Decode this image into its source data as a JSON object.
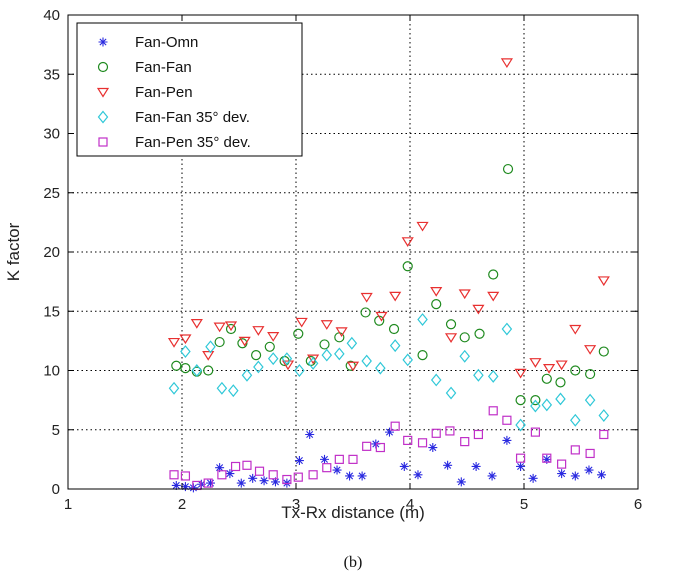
{
  "caption": "(b)",
  "colors": {
    "fan_omn": "#2a2ae0",
    "fan_fan": "#1f8a1f",
    "fan_pen": "#e83030",
    "fan_fan_35": "#30c8d8",
    "fan_pen_35": "#c030c8"
  },
  "chart_data": {
    "type": "scatter",
    "title": "",
    "xlabel": "Tx-Rx distance (m)",
    "ylabel": "K factor",
    "xlim": [
      1,
      6
    ],
    "ylim": [
      0,
      40
    ],
    "xticks": [
      "1",
      "2",
      "3",
      "4",
      "5",
      "6"
    ],
    "yticks": [
      "0",
      "5",
      "10",
      "15",
      "20",
      "25",
      "30",
      "35",
      "40"
    ],
    "grid": true,
    "legend_position": "top-left",
    "series": [
      {
        "name": "Fan-Omn",
        "marker": "asterisk",
        "color": "#2a2ae0",
        "points": [
          [
            1.95,
            0.3
          ],
          [
            2.03,
            0.2
          ],
          [
            2.1,
            0.1
          ],
          [
            2.17,
            0.4
          ],
          [
            2.25,
            0.5
          ],
          [
            2.33,
            1.8
          ],
          [
            2.42,
            1.3
          ],
          [
            2.52,
            0.5
          ],
          [
            2.62,
            0.9
          ],
          [
            2.72,
            0.7
          ],
          [
            2.82,
            0.6
          ],
          [
            2.92,
            0.5
          ],
          [
            3.03,
            2.4
          ],
          [
            3.12,
            4.6
          ],
          [
            3.25,
            2.5
          ],
          [
            3.36,
            1.6
          ],
          [
            3.47,
            1.1
          ],
          [
            3.58,
            1.1
          ],
          [
            3.7,
            3.8
          ],
          [
            3.82,
            4.8
          ],
          [
            3.95,
            1.9
          ],
          [
            4.07,
            1.2
          ],
          [
            4.2,
            3.5
          ],
          [
            4.33,
            2.0
          ],
          [
            4.45,
            0.6
          ],
          [
            4.58,
            1.9
          ],
          [
            4.72,
            1.1
          ],
          [
            4.85,
            4.1
          ],
          [
            4.97,
            1.9
          ],
          [
            5.08,
            0.9
          ],
          [
            5.2,
            2.5
          ],
          [
            5.33,
            1.3
          ],
          [
            5.45,
            1.1
          ],
          [
            5.57,
            1.6
          ],
          [
            5.68,
            1.2
          ]
        ]
      },
      {
        "name": "Fan-Fan",
        "marker": "circle",
        "color": "#1f8a1f",
        "points": [
          [
            1.95,
            10.4
          ],
          [
            2.03,
            10.2
          ],
          [
            2.13,
            9.9
          ],
          [
            2.23,
            10.0
          ],
          [
            2.33,
            12.4
          ],
          [
            2.43,
            13.5
          ],
          [
            2.53,
            12.3
          ],
          [
            2.65,
            11.3
          ],
          [
            2.77,
            12.0
          ],
          [
            2.9,
            10.8
          ],
          [
            3.02,
            13.1
          ],
          [
            3.13,
            10.8
          ],
          [
            3.25,
            12.2
          ],
          [
            3.38,
            12.8
          ],
          [
            3.48,
            10.4
          ],
          [
            3.61,
            14.9
          ],
          [
            3.73,
            14.2
          ],
          [
            3.86,
            13.5
          ],
          [
            3.98,
            18.8
          ],
          [
            4.11,
            11.3
          ],
          [
            4.23,
            15.6
          ],
          [
            4.36,
            13.9
          ],
          [
            4.48,
            12.8
          ],
          [
            4.61,
            13.1
          ],
          [
            4.73,
            18.1
          ],
          [
            4.86,
            27.0
          ],
          [
            4.97,
            7.5
          ],
          [
            5.1,
            7.5
          ],
          [
            5.2,
            9.3
          ],
          [
            5.32,
            9.0
          ],
          [
            5.45,
            10.0
          ],
          [
            5.58,
            9.7
          ],
          [
            5.7,
            11.6
          ]
        ]
      },
      {
        "name": "Fan-Pen",
        "marker": "triangle-down",
        "color": "#e83030",
        "points": [
          [
            1.93,
            12.4
          ],
          [
            2.03,
            12.7
          ],
          [
            2.13,
            14.0
          ],
          [
            2.23,
            11.3
          ],
          [
            2.33,
            13.7
          ],
          [
            2.43,
            13.8
          ],
          [
            2.55,
            12.5
          ],
          [
            2.67,
            13.4
          ],
          [
            2.8,
            12.9
          ],
          [
            2.93,
            10.5
          ],
          [
            3.05,
            14.1
          ],
          [
            3.15,
            11.0
          ],
          [
            3.27,
            13.9
          ],
          [
            3.4,
            13.3
          ],
          [
            3.5,
            10.4
          ],
          [
            3.62,
            16.2
          ],
          [
            3.75,
            14.6
          ],
          [
            3.87,
            16.3
          ],
          [
            3.98,
            20.9
          ],
          [
            4.11,
            22.2
          ],
          [
            4.23,
            16.7
          ],
          [
            4.36,
            12.8
          ],
          [
            4.48,
            16.5
          ],
          [
            4.6,
            15.2
          ],
          [
            4.73,
            16.3
          ],
          [
            4.85,
            36.0
          ],
          [
            4.97,
            9.8
          ],
          [
            5.1,
            10.7
          ],
          [
            5.22,
            10.2
          ],
          [
            5.33,
            10.5
          ],
          [
            5.45,
            13.5
          ],
          [
            5.58,
            11.8
          ],
          [
            5.7,
            17.6
          ]
        ]
      },
      {
        "name": "Fan-Fan 35° dev.",
        "marker": "diamond",
        "color": "#30c8d8",
        "points": [
          [
            1.93,
            8.5
          ],
          [
            2.03,
            11.6
          ],
          [
            2.13,
            10.0
          ],
          [
            2.25,
            12.0
          ],
          [
            2.35,
            8.5
          ],
          [
            2.45,
            8.3
          ],
          [
            2.57,
            9.6
          ],
          [
            2.67,
            10.3
          ],
          [
            2.8,
            11.0
          ],
          [
            2.92,
            11.0
          ],
          [
            3.03,
            10.0
          ],
          [
            3.15,
            10.6
          ],
          [
            3.27,
            11.3
          ],
          [
            3.38,
            11.4
          ],
          [
            3.49,
            12.3
          ],
          [
            3.62,
            10.8
          ],
          [
            3.74,
            10.2
          ],
          [
            3.87,
            12.1
          ],
          [
            3.98,
            10.9
          ],
          [
            4.11,
            14.3
          ],
          [
            4.23,
            9.2
          ],
          [
            4.36,
            8.1
          ],
          [
            4.48,
            11.2
          ],
          [
            4.6,
            9.6
          ],
          [
            4.73,
            9.5
          ],
          [
            4.85,
            13.5
          ],
          [
            4.97,
            5.4
          ],
          [
            5.1,
            7.0
          ],
          [
            5.2,
            7.1
          ],
          [
            5.32,
            7.6
          ],
          [
            5.45,
            5.8
          ],
          [
            5.58,
            7.5
          ],
          [
            5.7,
            6.2
          ]
        ]
      },
      {
        "name": "Fan-Pen 35° dev.",
        "marker": "square",
        "color": "#c030c8",
        "points": [
          [
            1.93,
            1.2
          ],
          [
            2.03,
            1.1
          ],
          [
            2.13,
            0.3
          ],
          [
            2.23,
            0.5
          ],
          [
            2.35,
            1.2
          ],
          [
            2.47,
            1.9
          ],
          [
            2.57,
            2.0
          ],
          [
            2.68,
            1.5
          ],
          [
            2.8,
            1.2
          ],
          [
            2.92,
            0.8
          ],
          [
            3.02,
            1.0
          ],
          [
            3.15,
            1.2
          ],
          [
            3.27,
            1.8
          ],
          [
            3.38,
            2.5
          ],
          [
            3.5,
            2.5
          ],
          [
            3.62,
            3.6
          ],
          [
            3.74,
            3.5
          ],
          [
            3.87,
            5.3
          ],
          [
            3.98,
            4.1
          ],
          [
            4.11,
            3.9
          ],
          [
            4.23,
            4.7
          ],
          [
            4.35,
            4.9
          ],
          [
            4.48,
            4.0
          ],
          [
            4.6,
            4.6
          ],
          [
            4.73,
            6.6
          ],
          [
            4.85,
            5.8
          ],
          [
            4.97,
            2.6
          ],
          [
            5.1,
            4.8
          ],
          [
            5.2,
            2.6
          ],
          [
            5.33,
            2.1
          ],
          [
            5.45,
            3.3
          ],
          [
            5.58,
            3.0
          ],
          [
            5.7,
            4.6
          ]
        ]
      }
    ]
  }
}
